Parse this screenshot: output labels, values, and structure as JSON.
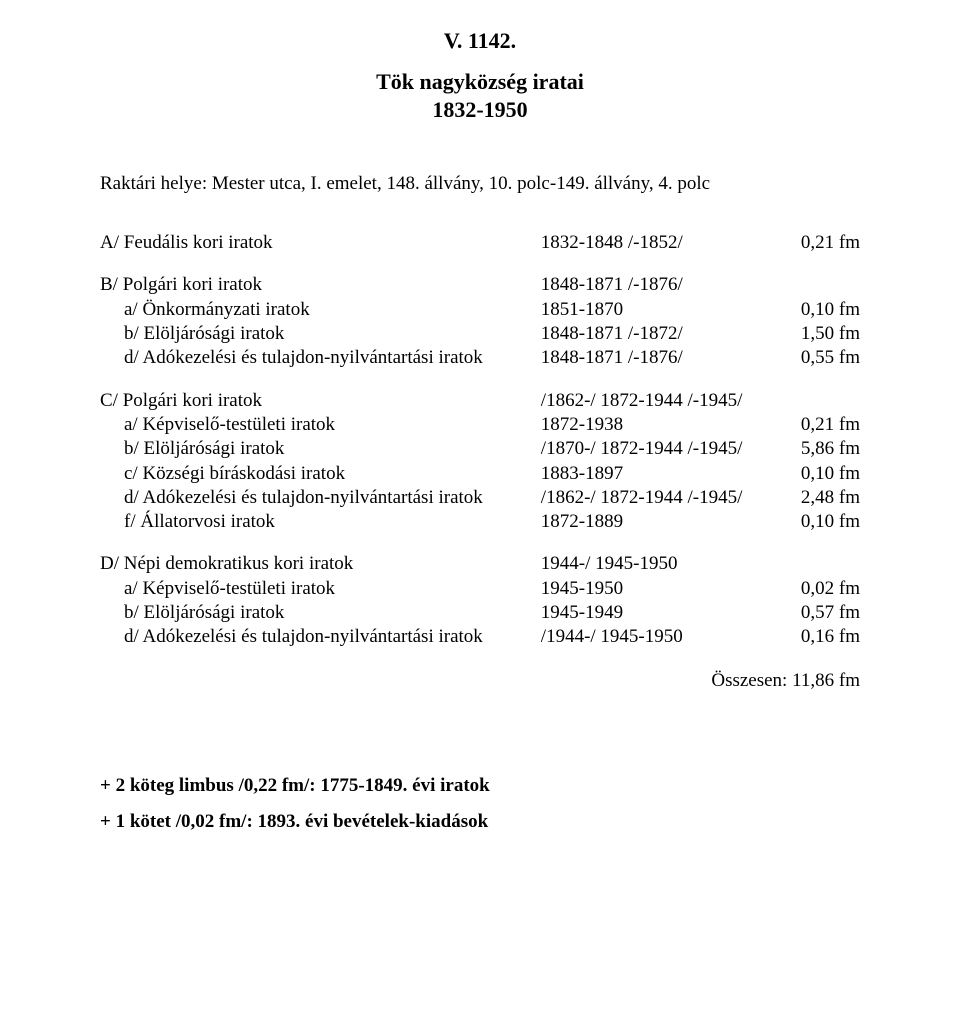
{
  "code": "V. 1142.",
  "title_line1": "Tök nagyközség iratai",
  "title_line2": "1832-1950",
  "location": "Raktári helye: Mester utca, I. emelet, 148. állvány, 10. polc-149. állvány, 4. polc",
  "sections": {
    "A": {
      "heading": "A/ Feudális kori iratok",
      "heading_range": "1832-1848 /-1852/",
      "heading_size": "0,21 fm"
    },
    "B": {
      "heading": "B/ Polgári kori iratok",
      "heading_range": "1848-1871 /-1876/",
      "rows": [
        {
          "label": "a/ Önkormányzati iratok",
          "range": "1851-1870",
          "size": "0,10 fm"
        },
        {
          "label": "b/ Elöljárósági iratok",
          "range": "1848-1871 /-1872/",
          "size": "1,50 fm"
        },
        {
          "label": "d/ Adókezelési és tulajdon-nyilvántartási iratok",
          "range": "1848-1871 /-1876/",
          "size": "0,55 fm"
        }
      ]
    },
    "C": {
      "heading": "C/ Polgári kori iratok",
      "heading_range": "/1862-/ 1872-1944 /-1945/",
      "rows": [
        {
          "label": "a/ Képviselő-testületi iratok",
          "range": "1872-1938",
          "size": "0,21 fm"
        },
        {
          "label": "b/ Elöljárósági iratok",
          "range": "/1870-/ 1872-1944 /-1945/",
          "size": "5,86 fm"
        },
        {
          "label": "c/ Községi bíráskodási iratok",
          "range": "1883-1897",
          "size": "0,10 fm"
        },
        {
          "label": "d/ Adókezelési és tulajdon-nyilvántartási iratok",
          "range": "/1862-/ 1872-1944 /-1945/",
          "size": "2,48 fm"
        },
        {
          "label": "f/ Állatorvosi iratok",
          "range": "1872-1889",
          "size": "0,10 fm"
        }
      ]
    },
    "D": {
      "heading": "D/ Népi demokratikus kori iratok",
      "heading_range": "1944-/ 1945-1950",
      "rows": [
        {
          "label": "a/ Képviselő-testületi iratok",
          "range": "1945-1950",
          "size": "0,02 fm"
        },
        {
          "label": "b/ Elöljárósági iratok",
          "range": "1945-1949",
          "size": "0,57 fm"
        },
        {
          "label": "d/ Adókezelési és tulajdon-nyilvántartási iratok",
          "range": "/1944-/ 1945-1950",
          "size": "0,16 fm"
        }
      ]
    }
  },
  "total": "Összesen: 11,86 fm",
  "notes": [
    "+ 2 köteg limbus /0,22 fm/: 1775-1849. évi iratok",
    "+ 1 kötet /0,02 fm/: 1893. évi bevételek-kiadások"
  ]
}
